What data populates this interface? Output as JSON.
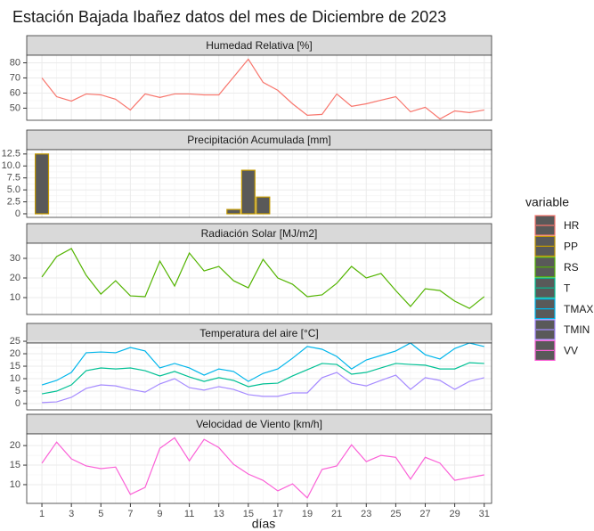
{
  "title": "Estación Bajada Ibañez datos del mes de Diciembre de 2023",
  "xlabel": "días",
  "legend_title": "variable",
  "chart_data": [
    {
      "type": "line",
      "title": "Humedad Relativa [%]",
      "x": [
        1,
        2,
        3,
        4,
        5,
        6,
        7,
        8,
        9,
        10,
        11,
        12,
        13,
        14,
        15,
        16,
        17,
        18,
        19,
        20,
        21,
        22,
        23,
        24,
        25,
        26,
        27,
        28,
        29,
        30,
        31
      ],
      "xlim": [
        -0.03,
        31.5
      ],
      "xticks": [
        1,
        3,
        5,
        7,
        9,
        11,
        13,
        15,
        17,
        19,
        21,
        23,
        25,
        27,
        29,
        31
      ],
      "ylim": [
        42,
        85
      ],
      "yticks": [
        50,
        60,
        70,
        80
      ],
      "grid": true,
      "series": [
        {
          "name": "HR",
          "color": "#F8766D",
          "values": [
            70,
            57.6,
            54.7,
            59.4,
            58.8,
            55.9,
            48.8,
            59.4,
            57.1,
            59.4,
            59.4,
            58.8,
            58.8,
            70.6,
            82.4,
            67.1,
            61.8,
            52.9,
            45.3,
            45.9,
            59.4,
            51.2,
            52.9,
            55.3,
            57.6,
            47.6,
            50.6,
            42.9,
            48.2,
            47.1,
            48.8
          ]
        }
      ]
    },
    {
      "type": "bar",
      "title": "Precipitación Acumulada [mm]",
      "x": [
        1,
        2,
        3,
        4,
        5,
        6,
        7,
        8,
        9,
        10,
        11,
        12,
        13,
        14,
        15,
        16,
        17,
        18,
        19,
        20,
        21,
        22,
        23,
        24,
        25,
        26,
        27,
        28,
        29,
        30,
        31
      ],
      "xlim": [
        -0.03,
        31.5
      ],
      "xticks": [
        1,
        3,
        5,
        7,
        9,
        11,
        13,
        15,
        17,
        19,
        21,
        23,
        25,
        27,
        29,
        31
      ],
      "ylim": [
        -0.75,
        13.4
      ],
      "yticks": [
        0,
        2.5,
        {
          "value": 5,
          "label": "5.0"
        },
        7.5,
        {
          "value": 10,
          "label": "10.0"
        },
        12.5
      ],
      "grid": true,
      "series": [
        {
          "name": "PP",
          "color": "#C49A00",
          "values": [
            12.5,
            0,
            0,
            0,
            0,
            0,
            0,
            0,
            0,
            0,
            0,
            0,
            0,
            0.9,
            9.1,
            3.5,
            0,
            0,
            0,
            0,
            0,
            0,
            0,
            0,
            0,
            0,
            0,
            0,
            0,
            0,
            0
          ]
        }
      ]
    },
    {
      "type": "line",
      "title": "Radiación Solar [MJ/m2]",
      "x": [
        1,
        2,
        3,
        4,
        5,
        6,
        7,
        8,
        9,
        10,
        11,
        12,
        13,
        14,
        15,
        16,
        17,
        18,
        19,
        20,
        21,
        22,
        23,
        24,
        25,
        26,
        27,
        28,
        29,
        30,
        31
      ],
      "xlim": [
        -0.03,
        31.5
      ],
      "xticks": [
        1,
        3,
        5,
        7,
        9,
        11,
        13,
        15,
        17,
        19,
        21,
        23,
        25,
        27,
        29,
        31
      ],
      "ylim": [
        1.4,
        37.7
      ],
      "yticks": [
        10,
        20,
        30
      ],
      "grid": true,
      "series": [
        {
          "name": "RS",
          "color": "#53B400",
          "values": [
            20.5,
            30.9,
            35,
            21.4,
            11.8,
            18.6,
            10.9,
            10.5,
            28.6,
            15.9,
            32.7,
            23.6,
            25.9,
            18.6,
            15,
            29.5,
            20,
            16.8,
            10.5,
            11.4,
            17.3,
            25.9,
            20,
            22.3,
            13.6,
            5.5,
            14.5,
            13.6,
            8.2,
            4.5,
            10.5
          ]
        }
      ]
    },
    {
      "type": "line",
      "title": "Temperatura del aire [°C]",
      "x": [
        1,
        2,
        3,
        4,
        5,
        6,
        7,
        8,
        9,
        10,
        11,
        12,
        13,
        14,
        15,
        16,
        17,
        18,
        19,
        20,
        21,
        22,
        23,
        24,
        25,
        26,
        27,
        28,
        29,
        30,
        31
      ],
      "xlim": [
        -0.03,
        31.5
      ],
      "xticks": [
        1,
        3,
        5,
        7,
        9,
        11,
        13,
        15,
        17,
        19,
        21,
        23,
        25,
        27,
        29,
        31
      ],
      "ylim": [
        -2.5,
        24.3
      ],
      "yticks": [
        0,
        5,
        10,
        15,
        20,
        25
      ],
      "grid": true,
      "series": [
        {
          "name": "T",
          "color": "#00C094",
          "values": [
            3.9,
            5,
            7.5,
            13.2,
            14.3,
            13.9,
            14.3,
            13.2,
            11.1,
            12.9,
            10.7,
            8.9,
            10.4,
            9.3,
            6.8,
            7.9,
            8.2,
            11.1,
            13.6,
            16.1,
            15.7,
            11.8,
            12.5,
            14.3,
            16.1,
            15.7,
            15.4,
            13.9,
            13.9,
            16.4,
            16.1
          ]
        },
        {
          "name": "TMAX",
          "color": "#00B6EB",
          "values": [
            7.5,
            9.3,
            12.5,
            20.4,
            20.7,
            20.4,
            22.5,
            21.1,
            14.3,
            16.1,
            14.3,
            11.4,
            13.9,
            12.9,
            8.9,
            12.1,
            13.9,
            18.2,
            22.9,
            21.8,
            18.9,
            13.9,
            17.5,
            19.3,
            21.1,
            24.3,
            19.6,
            17.9,
            22.1,
            24.3,
            22.9
          ]
        },
        {
          "name": "TMIN",
          "color": "#A58AFF",
          "values": [
            0.4,
            0.7,
            2.5,
            6.1,
            7.5,
            7.1,
            5.7,
            4.6,
            7.9,
            10,
            6.4,
            5.4,
            6.8,
            5.7,
            3.6,
            2.9,
            2.9,
            4.3,
            4.3,
            10.4,
            12.5,
            8.2,
            7.1,
            9.3,
            11.4,
            5.7,
            10.4,
            9.3,
            5.7,
            8.9,
            10.4
          ]
        }
      ]
    },
    {
      "type": "line",
      "title": "Velocidad de Viento [km/h]",
      "x": [
        1,
        2,
        3,
        4,
        5,
        6,
        7,
        8,
        9,
        10,
        11,
        12,
        13,
        14,
        15,
        16,
        17,
        18,
        19,
        20,
        21,
        22,
        23,
        24,
        25,
        26,
        27,
        28,
        29,
        30,
        31
      ],
      "xlim": [
        -0.03,
        31.5
      ],
      "xticks": [
        1,
        3,
        5,
        7,
        9,
        11,
        13,
        15,
        17,
        19,
        21,
        23,
        25,
        27,
        29,
        31
      ],
      "ylim": [
        5.2,
        23
      ],
      "yticks": [
        10,
        15,
        20
      ],
      "grid": true,
      "series": [
        {
          "name": "VV",
          "color": "#FB61D7",
          "values": [
            15.5,
            20.9,
            16.6,
            14.8,
            14.1,
            14.5,
            7.5,
            9.3,
            19.3,
            22,
            16.1,
            21.6,
            19.5,
            15.2,
            12.7,
            11.1,
            8.4,
            10.2,
            6.6,
            13.9,
            14.8,
            20.2,
            15.9,
            17.5,
            17,
            11.4,
            17,
            15.5,
            11.1,
            11.8,
            12.5
          ]
        }
      ]
    }
  ]
}
